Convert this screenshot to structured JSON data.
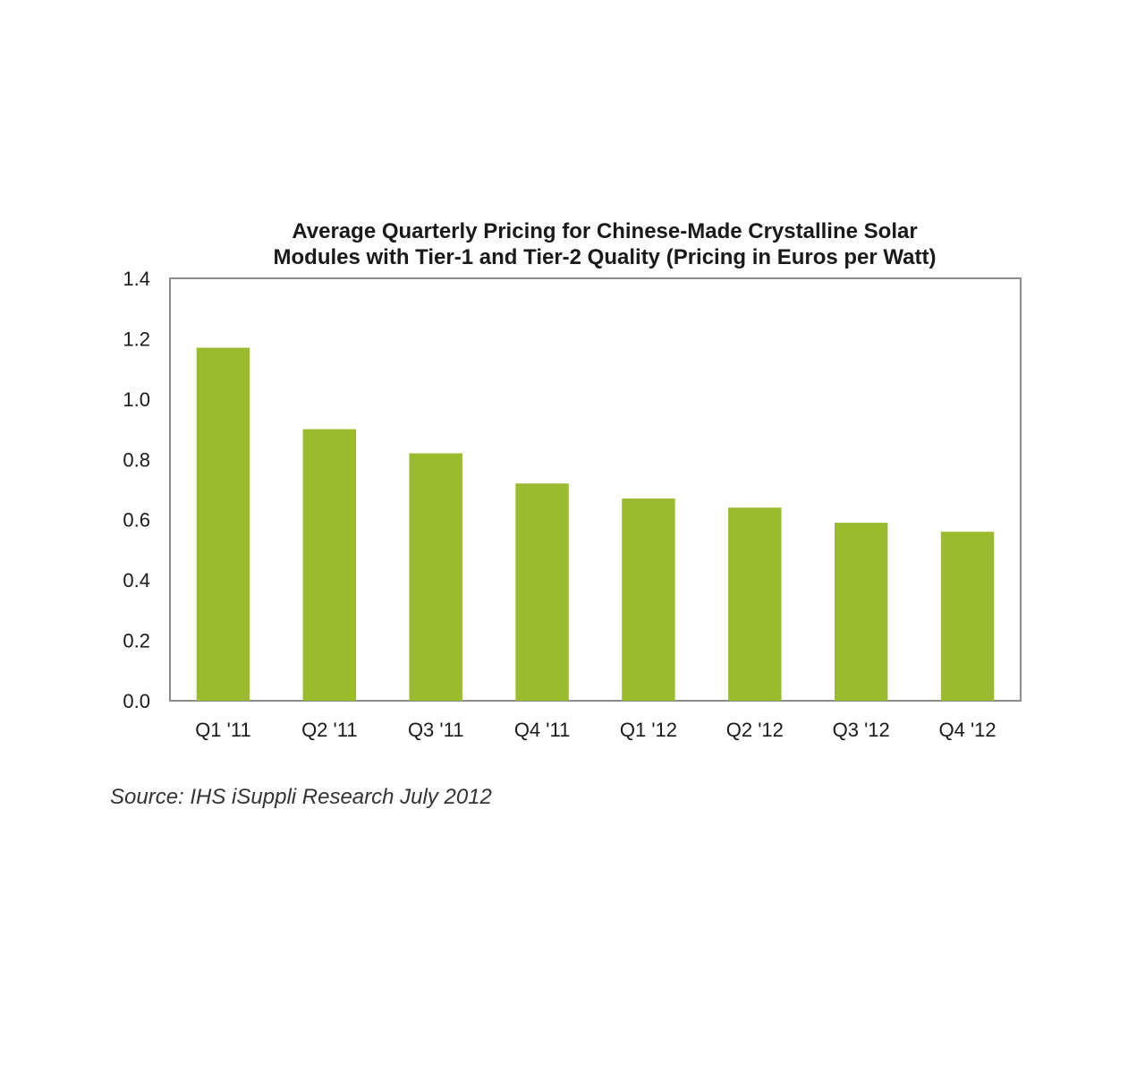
{
  "chart_data": {
    "type": "bar",
    "title_lines": [
      "Average Quarterly Pricing for Chinese-Made Crystalline Solar",
      "Modules with Tier-1 and Tier-2 Quality (Pricing in Euros per Watt)"
    ],
    "xlabel": "",
    "ylabel": "",
    "categories": [
      "Q1 '11",
      "Q2 '11",
      "Q3 '11",
      "Q4 '11",
      "Q1 '12",
      "Q2 '12",
      "Q3 '12",
      "Q4 '12"
    ],
    "values": [
      1.17,
      0.9,
      0.82,
      0.72,
      0.67,
      0.64,
      0.59,
      0.56
    ],
    "ylim": [
      0,
      1.4
    ],
    "yticks": [
      "0.0",
      "0.2",
      "0.4",
      "0.6",
      "0.8",
      "1.0",
      "1.2",
      "1.4"
    ],
    "grid": false,
    "legend": "none",
    "bar_color": "#9bbb2f",
    "frame_color": "#8c8c8c",
    "source": "Source: IHS iSuppli Research July 2012"
  }
}
